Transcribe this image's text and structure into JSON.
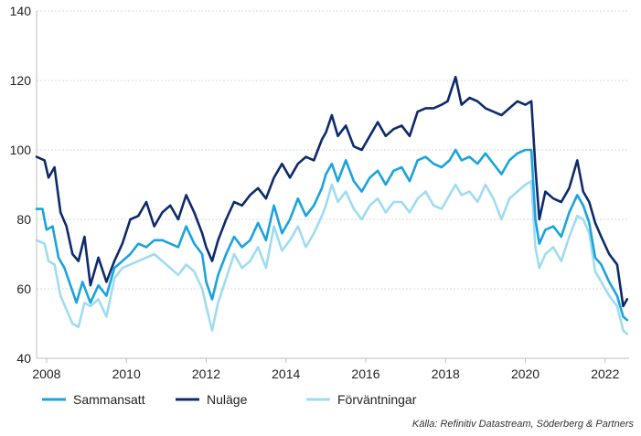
{
  "chart_data": {
    "type": "line",
    "title": "",
    "xlabel": "",
    "ylabel": "",
    "xlim": [
      2007.75,
      2022.6
    ],
    "ylim": [
      40,
      140
    ],
    "yticks": [
      40,
      60,
      80,
      100,
      120,
      140
    ],
    "xticks": [
      2008,
      2010,
      2012,
      2014,
      2016,
      2018,
      2020,
      2022
    ],
    "grid": "horizontal",
    "legend_position": "bottom-left",
    "source": "Källa: Refinitiv Datastream, Söderberg & Partners",
    "series": [
      {
        "name": "Sammansatt",
        "color": "#1aa3de",
        "points": [
          [
            2007.75,
            83
          ],
          [
            2007.9,
            83
          ],
          [
            2008.0,
            77
          ],
          [
            2008.15,
            78
          ],
          [
            2008.3,
            69
          ],
          [
            2008.45,
            66
          ],
          [
            2008.6,
            61
          ],
          [
            2008.75,
            56
          ],
          [
            2008.9,
            62
          ],
          [
            2009.1,
            56
          ],
          [
            2009.3,
            61
          ],
          [
            2009.5,
            58
          ],
          [
            2009.7,
            66
          ],
          [
            2009.9,
            68
          ],
          [
            2010.1,
            70
          ],
          [
            2010.3,
            73
          ],
          [
            2010.5,
            72
          ],
          [
            2010.7,
            74
          ],
          [
            2010.9,
            74
          ],
          [
            2011.1,
            73
          ],
          [
            2011.3,
            72
          ],
          [
            2011.5,
            78
          ],
          [
            2011.7,
            73
          ],
          [
            2011.9,
            70
          ],
          [
            2012.0,
            62
          ],
          [
            2012.15,
            57
          ],
          [
            2012.3,
            64
          ],
          [
            2012.5,
            70
          ],
          [
            2012.7,
            75
          ],
          [
            2012.9,
            72
          ],
          [
            2013.1,
            74
          ],
          [
            2013.3,
            79
          ],
          [
            2013.5,
            74
          ],
          [
            2013.7,
            84
          ],
          [
            2013.9,
            76
          ],
          [
            2014.1,
            80
          ],
          [
            2014.3,
            86
          ],
          [
            2014.5,
            81
          ],
          [
            2014.7,
            84
          ],
          [
            2014.9,
            89
          ],
          [
            2015.0,
            93
          ],
          [
            2015.15,
            96
          ],
          [
            2015.3,
            91
          ],
          [
            2015.5,
            97
          ],
          [
            2015.7,
            91
          ],
          [
            2015.9,
            88
          ],
          [
            2016.1,
            92
          ],
          [
            2016.3,
            94
          ],
          [
            2016.5,
            90
          ],
          [
            2016.7,
            94
          ],
          [
            2016.9,
            95
          ],
          [
            2017.1,
            91
          ],
          [
            2017.3,
            97
          ],
          [
            2017.5,
            98
          ],
          [
            2017.7,
            96
          ],
          [
            2017.9,
            95
          ],
          [
            2018.1,
            97
          ],
          [
            2018.25,
            100
          ],
          [
            2018.4,
            97
          ],
          [
            2018.6,
            98
          ],
          [
            2018.8,
            96
          ],
          [
            2019.0,
            99
          ],
          [
            2019.2,
            96
          ],
          [
            2019.4,
            93
          ],
          [
            2019.6,
            97
          ],
          [
            2019.8,
            99
          ],
          [
            2020.0,
            100
          ],
          [
            2020.15,
            100
          ],
          [
            2020.25,
            80
          ],
          [
            2020.35,
            73
          ],
          [
            2020.5,
            77
          ],
          [
            2020.7,
            78
          ],
          [
            2020.9,
            75
          ],
          [
            2021.1,
            82
          ],
          [
            2021.3,
            87
          ],
          [
            2021.45,
            84
          ],
          [
            2021.6,
            79
          ],
          [
            2021.75,
            69
          ],
          [
            2021.9,
            67
          ],
          [
            2022.1,
            62
          ],
          [
            2022.3,
            58
          ],
          [
            2022.45,
            52
          ],
          [
            2022.55,
            51
          ]
        ]
      },
      {
        "name": "Nuläge",
        "color": "#0d2b6b",
        "points": [
          [
            2007.75,
            98
          ],
          [
            2007.95,
            97
          ],
          [
            2008.05,
            92
          ],
          [
            2008.2,
            95
          ],
          [
            2008.35,
            82
          ],
          [
            2008.5,
            78
          ],
          [
            2008.65,
            70
          ],
          [
            2008.8,
            68
          ],
          [
            2008.95,
            75
          ],
          [
            2009.1,
            61
          ],
          [
            2009.3,
            69
          ],
          [
            2009.5,
            62
          ],
          [
            2009.7,
            68
          ],
          [
            2009.9,
            73
          ],
          [
            2010.1,
            80
          ],
          [
            2010.3,
            81
          ],
          [
            2010.5,
            85
          ],
          [
            2010.7,
            78
          ],
          [
            2010.9,
            82
          ],
          [
            2011.1,
            84
          ],
          [
            2011.3,
            80
          ],
          [
            2011.5,
            87
          ],
          [
            2011.7,
            82
          ],
          [
            2011.9,
            76
          ],
          [
            2012.0,
            72
          ],
          [
            2012.15,
            68
          ],
          [
            2012.3,
            74
          ],
          [
            2012.5,
            80
          ],
          [
            2012.7,
            85
          ],
          [
            2012.9,
            84
          ],
          [
            2013.1,
            87
          ],
          [
            2013.3,
            89
          ],
          [
            2013.5,
            86
          ],
          [
            2013.7,
            92
          ],
          [
            2013.9,
            96
          ],
          [
            2014.1,
            92
          ],
          [
            2014.3,
            96
          ],
          [
            2014.5,
            98
          ],
          [
            2014.7,
            97
          ],
          [
            2014.9,
            103
          ],
          [
            2015.0,
            105
          ],
          [
            2015.15,
            110
          ],
          [
            2015.3,
            104
          ],
          [
            2015.5,
            107
          ],
          [
            2015.7,
            101
          ],
          [
            2015.9,
            100
          ],
          [
            2016.1,
            104
          ],
          [
            2016.3,
            108
          ],
          [
            2016.5,
            104
          ],
          [
            2016.7,
            106
          ],
          [
            2016.9,
            107
          ],
          [
            2017.1,
            104
          ],
          [
            2017.3,
            111
          ],
          [
            2017.5,
            112
          ],
          [
            2017.7,
            112
          ],
          [
            2017.9,
            113
          ],
          [
            2018.05,
            114
          ],
          [
            2018.25,
            121
          ],
          [
            2018.4,
            113
          ],
          [
            2018.6,
            115
          ],
          [
            2018.8,
            114
          ],
          [
            2019.0,
            112
          ],
          [
            2019.2,
            111
          ],
          [
            2019.4,
            110
          ],
          [
            2019.6,
            112
          ],
          [
            2019.8,
            114
          ],
          [
            2020.0,
            113
          ],
          [
            2020.15,
            114
          ],
          [
            2020.25,
            95
          ],
          [
            2020.35,
            80
          ],
          [
            2020.5,
            88
          ],
          [
            2020.7,
            86
          ],
          [
            2020.9,
            85
          ],
          [
            2021.1,
            89
          ],
          [
            2021.3,
            97
          ],
          [
            2021.45,
            88
          ],
          [
            2021.6,
            85
          ],
          [
            2021.75,
            79
          ],
          [
            2021.9,
            75
          ],
          [
            2022.1,
            70
          ],
          [
            2022.3,
            67
          ],
          [
            2022.45,
            55
          ],
          [
            2022.55,
            57
          ]
        ]
      },
      {
        "name": "Förväntningar",
        "color": "#9fdcf2",
        "points": [
          [
            2007.75,
            74
          ],
          [
            2007.95,
            73
          ],
          [
            2008.05,
            68
          ],
          [
            2008.2,
            67
          ],
          [
            2008.35,
            58
          ],
          [
            2008.5,
            54
          ],
          [
            2008.65,
            50
          ],
          [
            2008.8,
            49
          ],
          [
            2008.95,
            56
          ],
          [
            2009.1,
            55
          ],
          [
            2009.3,
            57
          ],
          [
            2009.5,
            52
          ],
          [
            2009.7,
            63
          ],
          [
            2009.9,
            66
          ],
          [
            2010.1,
            67
          ],
          [
            2010.3,
            68
          ],
          [
            2010.5,
            69
          ],
          [
            2010.7,
            70
          ],
          [
            2010.9,
            68
          ],
          [
            2011.1,
            66
          ],
          [
            2011.3,
            64
          ],
          [
            2011.5,
            67
          ],
          [
            2011.7,
            65
          ],
          [
            2011.9,
            60
          ],
          [
            2012.0,
            55
          ],
          [
            2012.15,
            48
          ],
          [
            2012.3,
            56
          ],
          [
            2012.5,
            63
          ],
          [
            2012.7,
            70
          ],
          [
            2012.9,
            66
          ],
          [
            2013.1,
            68
          ],
          [
            2013.3,
            72
          ],
          [
            2013.5,
            66
          ],
          [
            2013.7,
            78
          ],
          [
            2013.9,
            71
          ],
          [
            2014.1,
            74
          ],
          [
            2014.3,
            78
          ],
          [
            2014.5,
            72
          ],
          [
            2014.7,
            76
          ],
          [
            2014.9,
            81
          ],
          [
            2015.0,
            84
          ],
          [
            2015.15,
            90
          ],
          [
            2015.3,
            85
          ],
          [
            2015.5,
            88
          ],
          [
            2015.7,
            83
          ],
          [
            2015.9,
            80
          ],
          [
            2016.1,
            84
          ],
          [
            2016.3,
            86
          ],
          [
            2016.5,
            82
          ],
          [
            2016.7,
            85
          ],
          [
            2016.9,
            85
          ],
          [
            2017.1,
            82
          ],
          [
            2017.3,
            86
          ],
          [
            2017.5,
            88
          ],
          [
            2017.7,
            84
          ],
          [
            2017.9,
            83
          ],
          [
            2018.1,
            87
          ],
          [
            2018.25,
            90
          ],
          [
            2018.4,
            87
          ],
          [
            2018.6,
            88
          ],
          [
            2018.8,
            85
          ],
          [
            2019.0,
            90
          ],
          [
            2019.2,
            86
          ],
          [
            2019.4,
            80
          ],
          [
            2019.6,
            86
          ],
          [
            2019.8,
            88
          ],
          [
            2020.0,
            90
          ],
          [
            2020.15,
            91
          ],
          [
            2020.25,
            72
          ],
          [
            2020.35,
            66
          ],
          [
            2020.5,
            70
          ],
          [
            2020.7,
            72
          ],
          [
            2020.9,
            68
          ],
          [
            2021.1,
            75
          ],
          [
            2021.3,
            81
          ],
          [
            2021.45,
            80
          ],
          [
            2021.6,
            76
          ],
          [
            2021.75,
            65
          ],
          [
            2021.9,
            62
          ],
          [
            2022.1,
            58
          ],
          [
            2022.3,
            55
          ],
          [
            2022.45,
            48
          ],
          [
            2022.55,
            47
          ]
        ]
      }
    ]
  }
}
